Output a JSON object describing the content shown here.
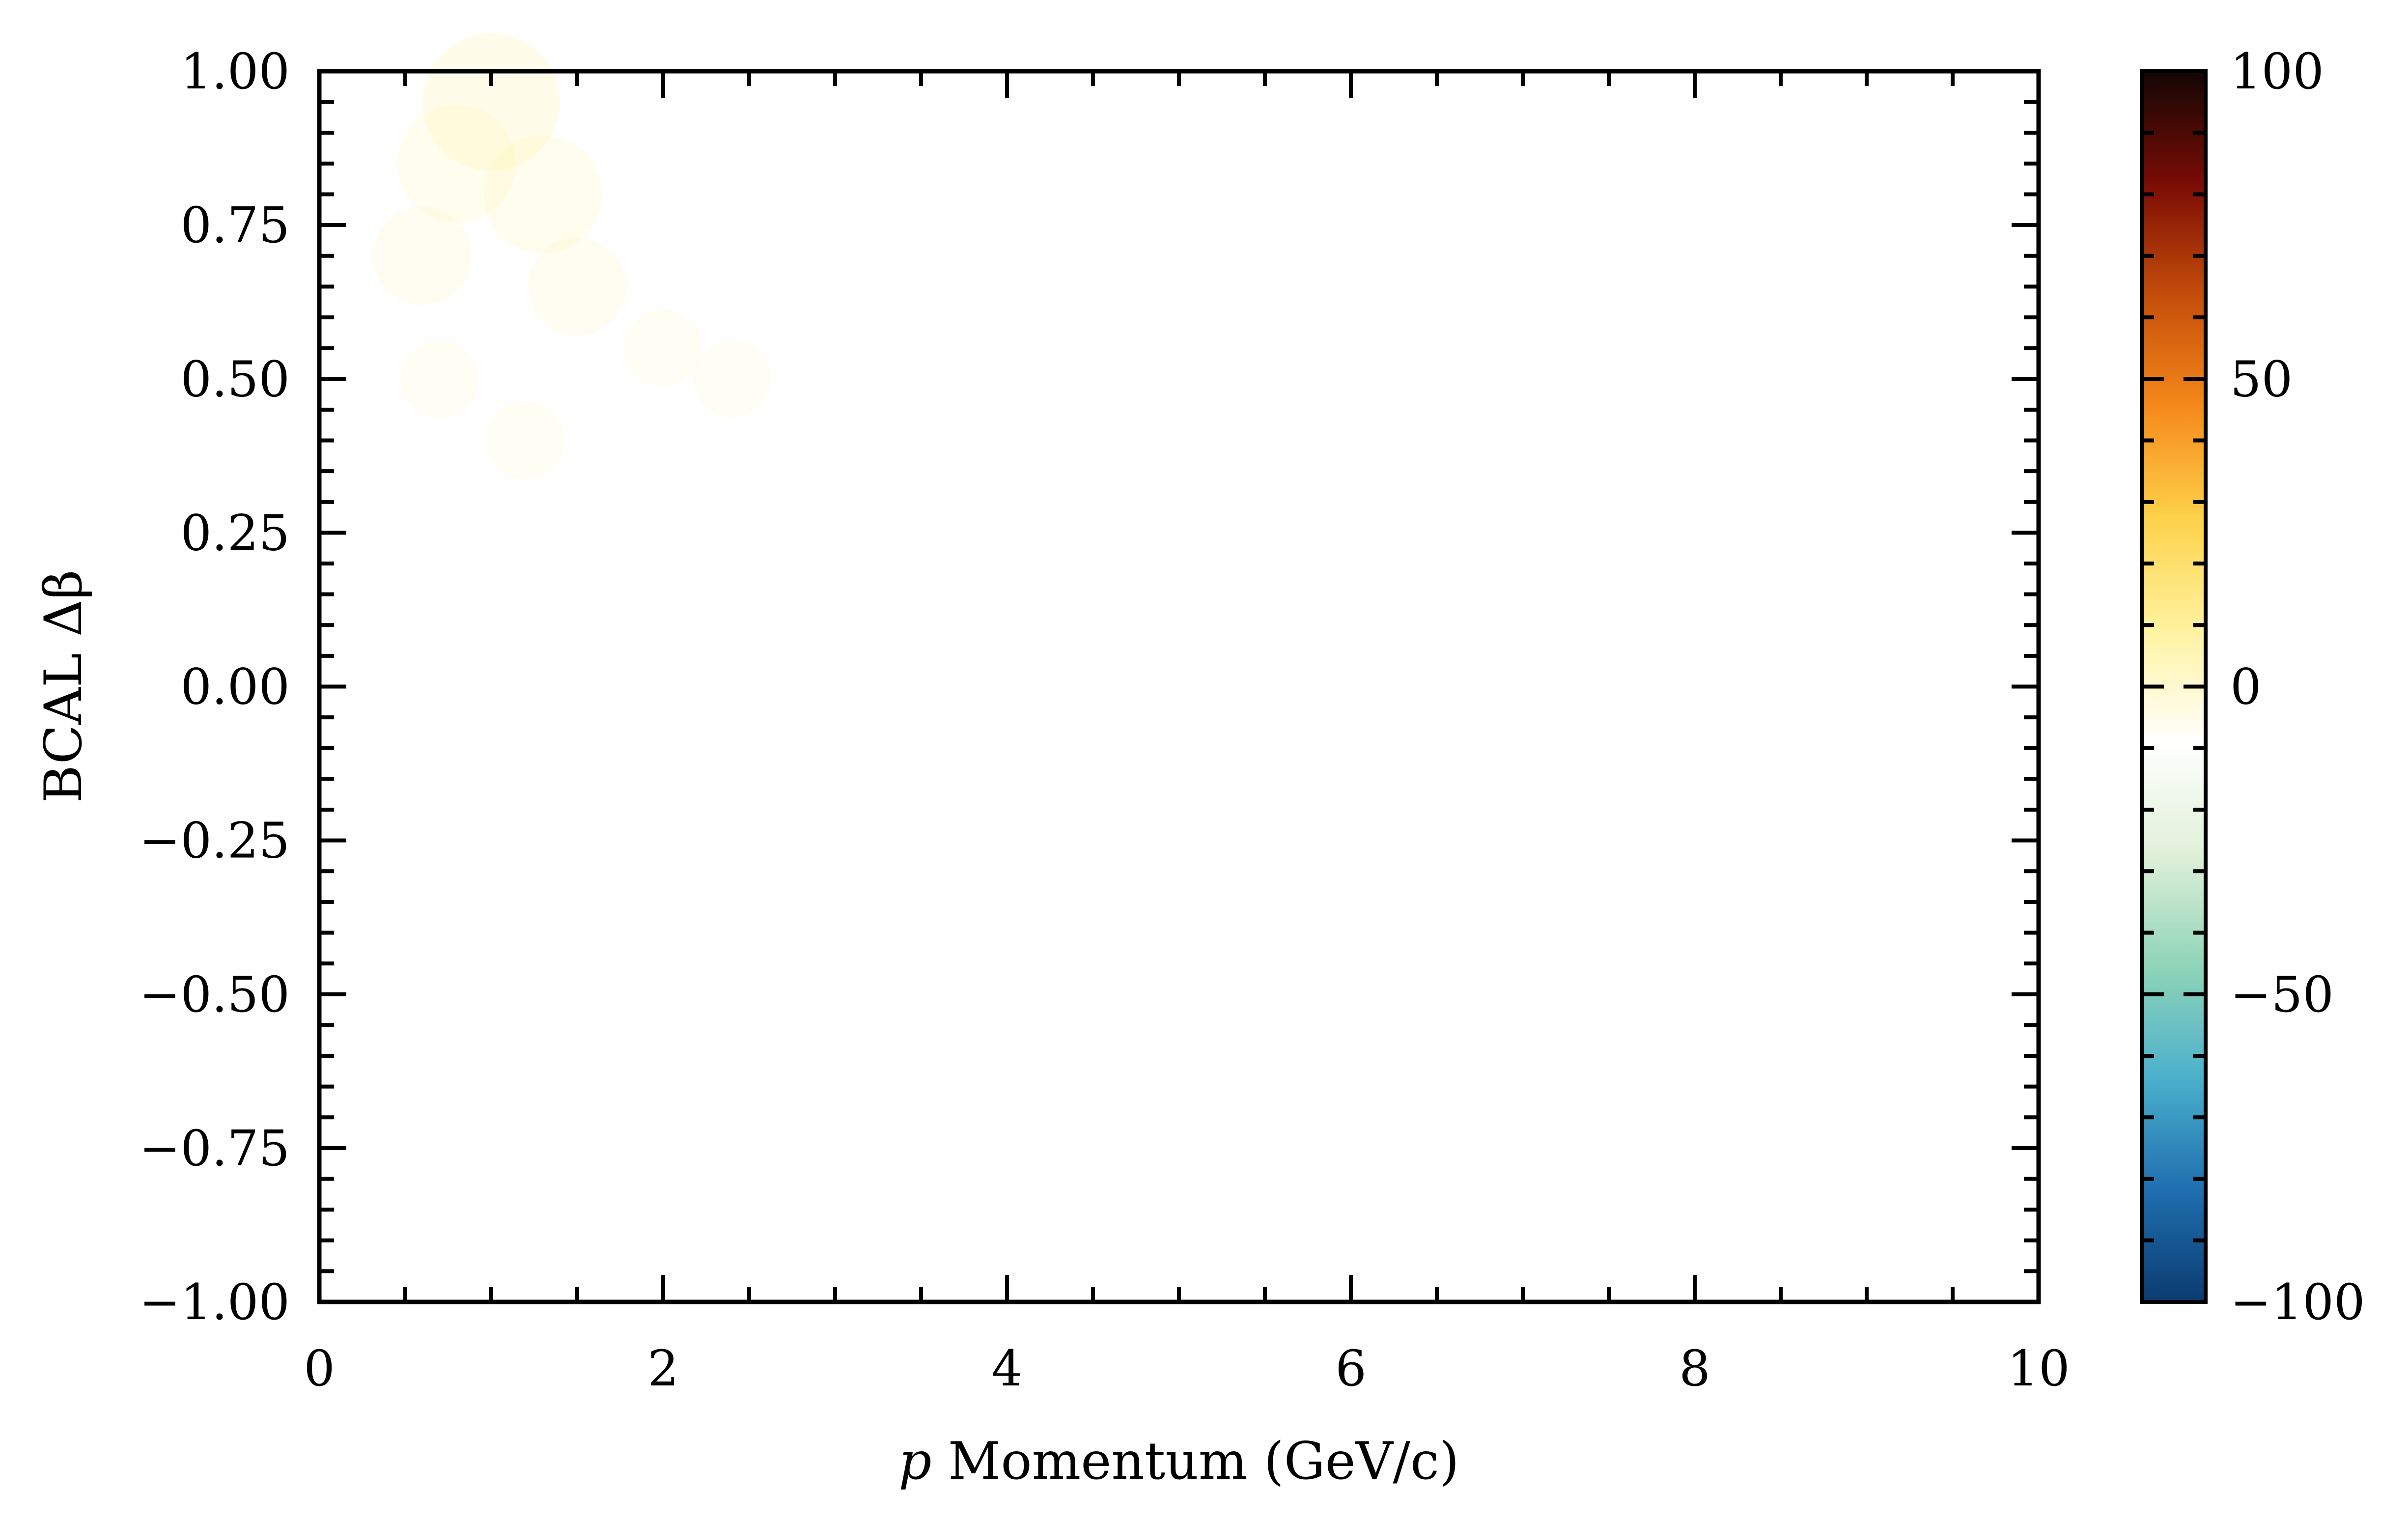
{
  "chart_data": {
    "type": "heatmap",
    "xlabel_italic": "p",
    "xlabel": " Momentum (GeV/c)",
    "ylabel": "BCAL Δβ",
    "xlim": [
      0,
      10
    ],
    "ylim": [
      -1.0,
      1.0
    ],
    "x_ticks": [
      "0",
      "2",
      "4",
      "6",
      "8",
      "10"
    ],
    "y_ticks": [
      "1.00",
      "0.75",
      "0.50",
      "0.25",
      "0.00",
      "−0.25",
      "−0.50",
      "−0.75",
      "−1.00"
    ],
    "colorbar": {
      "range": [
        -100,
        100
      ],
      "ticks": [
        "100",
        "50",
        "0",
        "−50",
        "−100"
      ],
      "colormap_stops": [
        "#0b3b6f",
        "#1f6fb0",
        "#4bb0cc",
        "#8fd4b8",
        "#dff0d8",
        "#ffffff",
        "#fff3a0",
        "#fdd24a",
        "#f5891a",
        "#c44d0a",
        "#7a0c05",
        "#120604"
      ]
    },
    "grid": false,
    "data_description_visible": "faint density near p 0.5–2.5, Δβ 0.3–1.0",
    "density_points": [
      {
        "x": 1.0,
        "y": 0.95,
        "v": 4
      },
      {
        "x": 0.8,
        "y": 0.85,
        "v": 3
      },
      {
        "x": 1.3,
        "y": 0.8,
        "v": 3
      },
      {
        "x": 0.6,
        "y": 0.7,
        "v": 2
      },
      {
        "x": 1.5,
        "y": 0.65,
        "v": 2
      },
      {
        "x": 2.0,
        "y": 0.55,
        "v": 1
      },
      {
        "x": 0.7,
        "y": 0.5,
        "v": 1
      },
      {
        "x": 1.2,
        "y": 0.4,
        "v": 1
      },
      {
        "x": 2.4,
        "y": 0.5,
        "v": 1
      }
    ]
  }
}
